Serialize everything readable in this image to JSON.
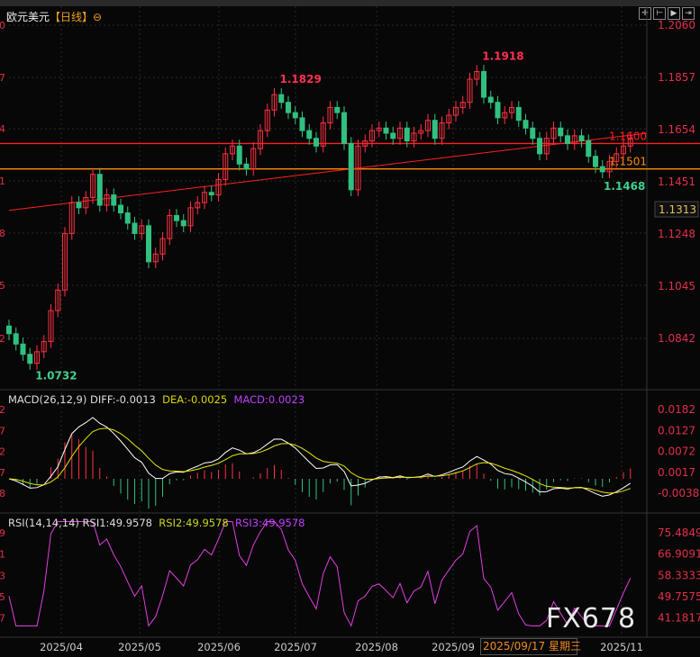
{
  "header": {
    "title": "欧元美元",
    "timeframe": "【日线】",
    "tools": [
      "crosshair-icon",
      "range-icon",
      "play-icon",
      "fit-icon"
    ]
  },
  "chart_data": {
    "type": "candlestick",
    "symbol": "欧元美元",
    "price_axis": {
      "ticks": [
        "1.2060",
        "1.1857",
        "1.1654",
        "1.1451",
        "1.1248",
        "1.1045",
        "1.0842"
      ],
      "range": [
        1.075,
        1.206
      ]
    },
    "left_axis_partial": {
      "main": [
        "0",
        "7",
        "4",
        "1",
        "8",
        "5",
        "2"
      ],
      "macd": [
        "2",
        "7",
        "2",
        "7",
        "8"
      ],
      "rsi": [
        "9",
        "1",
        "3",
        "5",
        "7"
      ]
    },
    "closes": [
      1.086,
      1.082,
      1.078,
      1.0745,
      1.079,
      1.083,
      1.095,
      1.103,
      1.125,
      1.137,
      1.135,
      1.139,
      1.148,
      1.136,
      1.14,
      1.136,
      1.133,
      1.129,
      1.125,
      1.128,
      1.114,
      1.117,
      1.123,
      1.132,
      1.13,
      1.128,
      1.135,
      1.137,
      1.141,
      1.14,
      1.146,
      1.156,
      1.159,
      1.152,
      1.15,
      1.158,
      1.165,
      1.173,
      1.179,
      1.176,
      1.172,
      1.17,
      1.165,
      1.162,
      1.159,
      1.168,
      1.174,
      1.172,
      1.16,
      1.142,
      1.159,
      1.161,
      1.165,
      1.166,
      1.164,
      1.162,
      1.166,
      1.161,
      1.164,
      1.165,
      1.169,
      1.162,
      1.168,
      1.171,
      1.174,
      1.176,
      1.185,
      1.188,
      1.178,
      1.176,
      1.17,
      1.172,
      1.174,
      1.169,
      1.166,
      1.162,
      1.156,
      1.162,
      1.166,
      1.163,
      1.16,
      1.163,
      1.161,
      1.155,
      1.151,
      1.149,
      1.153,
      1.156,
      1.159,
      1.162
    ],
    "annotations": [
      {
        "text": "1.0732",
        "value": 1.0732,
        "type": "low"
      },
      {
        "text": "1.1829",
        "value": 1.1829,
        "type": "high"
      },
      {
        "text": "1.1918",
        "value": 1.1918,
        "type": "high"
      },
      {
        "text": "1.1468",
        "value": 1.1468,
        "type": "low"
      }
    ],
    "horizontal_lines": [
      {
        "value": 1.16,
        "label": "1.1600",
        "color": "#ff2020"
      },
      {
        "value": 1.1501,
        "label": "1.1501",
        "color": "#ff8c00"
      }
    ],
    "trendline": {
      "from": 1.134,
      "to": 1.164,
      "color": "#ff2020"
    },
    "current_price": "1.1313",
    "date_labels": [
      "2025/04",
      "2025/05",
      "2025/06",
      "2025/07",
      "2025/08",
      "2025/09",
      "2025/11"
    ],
    "crosshair_date": "2025/09/17 星期三",
    "macd": {
      "label": "MACD(26,12,9)",
      "diff": "DIFF:-0.0013",
      "dea": "DEA:-0.0025",
      "macd": "MACD:0.0023",
      "ticks": [
        "0.0182",
        "0.0127",
        "0.0072",
        "0.0017",
        "-0.0038"
      ]
    },
    "rsi": {
      "label": "RSI(14,14,14)",
      "rsi1": "RSI1:49.9578",
      "rsi2": "RSI2:49.9578",
      "rsi3": "RSI3:49.9578",
      "ticks": [
        "75.4849",
        "66.9091",
        "58.3333",
        "49.7575",
        "41.1817"
      ]
    },
    "colors": {
      "up": "#ff3040",
      "down": "#30c080",
      "diff": "#ffffff",
      "dea": "#e8e800",
      "rsi": "#e040e0"
    }
  },
  "watermark": "FX678"
}
